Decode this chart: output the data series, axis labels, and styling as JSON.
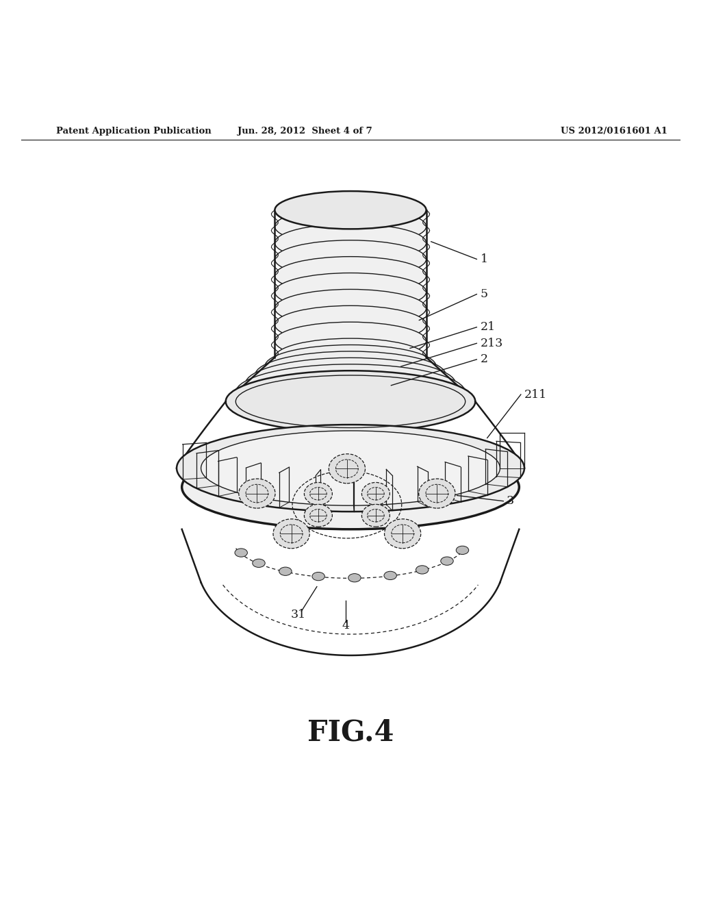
{
  "background_color": "#ffffff",
  "line_color": "#1a1a1a",
  "fig_width": 10.24,
  "fig_height": 13.2,
  "header_left": "Patent Application Publication",
  "header_mid": "Jun. 28, 2012  Sheet 4 of 7",
  "header_right": "US 2012/0161601 A1",
  "figure_label": "FIG.4"
}
